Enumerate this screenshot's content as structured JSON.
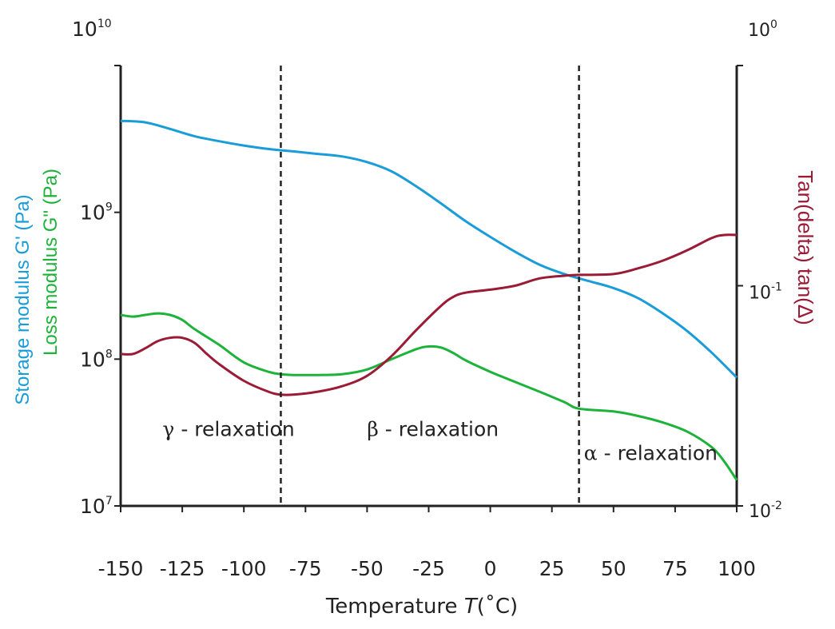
{
  "chart_data": {
    "type": "line",
    "xlabel": {
      "prefix": "Temperature ",
      "var": "T",
      "suffix": "(˚C)"
    },
    "x_ticks": [
      "-150",
      "-125",
      "-100",
      "-75",
      "-50",
      "-25",
      "0",
      "25",
      "50",
      "75",
      "100"
    ],
    "xlim": [
      -150,
      100
    ],
    "left_axis": {
      "scale": "log",
      "ylim": [
        10000000,
        10000000000
      ],
      "ticks": [
        {
          "base": "10",
          "exp": "7"
        },
        {
          "base": "10",
          "exp": "8"
        },
        {
          "base": "10",
          "exp": "9"
        },
        {
          "base": "10",
          "exp": "10"
        }
      ],
      "labels": [
        {
          "text": "Storage modulus G' (Pa)",
          "color": "#1a9cd8"
        },
        {
          "text": "Loss modulus G\" (Pa)",
          "color": "#1db33a"
        }
      ]
    },
    "right_axis": {
      "scale": "log",
      "ylim": [
        0.01,
        1
      ],
      "ticks": [
        {
          "base": "10",
          "exp": "-2"
        },
        {
          "base": "10",
          "exp": "-1"
        },
        {
          "base": "10",
          "exp": "0"
        }
      ],
      "label": {
        "text": "Tan(delta) tan(Δ)",
        "color": "#9b1b36"
      }
    },
    "vlines": [
      -85,
      36
    ],
    "regions": [
      {
        "greek": "γ",
        "text": " - relaxation",
        "x": -133,
        "y": 30000000
      },
      {
        "greek": "β",
        "text": " - relaxation",
        "x": -50,
        "y": 30000000
      },
      {
        "greek": "α",
        "text": " - relaxation",
        "x": 38,
        "y": 20500000
      }
    ],
    "series": [
      {
        "color": "#1a9cd8",
        "axis": "left",
        "x": [
          -150,
          -140,
          -130,
          -120,
          -110,
          -100,
          -90,
          -80,
          -70,
          -60,
          -50,
          -40,
          -30,
          -20,
          -10,
          0,
          10,
          20,
          30,
          40,
          50,
          60,
          70,
          80,
          90,
          100
        ],
        "y": [
          4200000000,
          4100000000,
          3700000000,
          3300000000,
          3050000000,
          2850000000,
          2700000000,
          2600000000,
          2500000000,
          2400000000,
          2200000000,
          1900000000,
          1500000000,
          1150000000,
          870000000,
          680000000,
          540000000,
          440000000,
          380000000,
          340000000,
          305000000,
          260000000,
          205000000,
          155000000,
          110000000,
          75000000
        ]
      },
      {
        "color": "#1db33a",
        "axis": "left",
        "x": [
          -150,
          -145,
          -140,
          -135,
          -130,
          -125,
          -120,
          -110,
          -100,
          -90,
          -85,
          -80,
          -75,
          -70,
          -60,
          -50,
          -40,
          -30,
          -25,
          -20,
          -15,
          -10,
          0,
          10,
          20,
          30,
          36,
          50,
          60,
          70,
          80,
          90,
          95,
          100
        ],
        "y": [
          200000000,
          195000000,
          200000000,
          205000000,
          200000000,
          185000000,
          160000000,
          125000000,
          95000000,
          82000000,
          79000000,
          78000000,
          78000000,
          78000000,
          79000000,
          85000000,
          100000000,
          117000000,
          122000000,
          120000000,
          110000000,
          98000000,
          82000000,
          70000000,
          60000000,
          51000000,
          46000000,
          44000000,
          41000000,
          37000000,
          32000000,
          25000000,
          20000000,
          15000000
        ]
      },
      {
        "color": "#9b1b36",
        "axis": "right",
        "x": [
          -150,
          -145,
          -140,
          -135,
          -130,
          -125,
          -120,
          -115,
          -110,
          -100,
          -90,
          -85,
          -80,
          -70,
          -60,
          -50,
          -40,
          -30,
          -20,
          -15,
          -10,
          0,
          10,
          20,
          30,
          36,
          50,
          60,
          70,
          80,
          90,
          95,
          100
        ],
        "y": [
          0.049,
          0.049,
          0.052,
          0.056,
          0.058,
          0.058,
          0.055,
          0.049,
          0.044,
          0.037,
          0.033,
          0.032,
          0.032,
          0.033,
          0.035,
          0.039,
          0.048,
          0.063,
          0.081,
          0.089,
          0.093,
          0.096,
          0.1,
          0.108,
          0.111,
          0.112,
          0.113,
          0.12,
          0.13,
          0.145,
          0.165,
          0.17,
          0.17
        ]
      }
    ]
  }
}
